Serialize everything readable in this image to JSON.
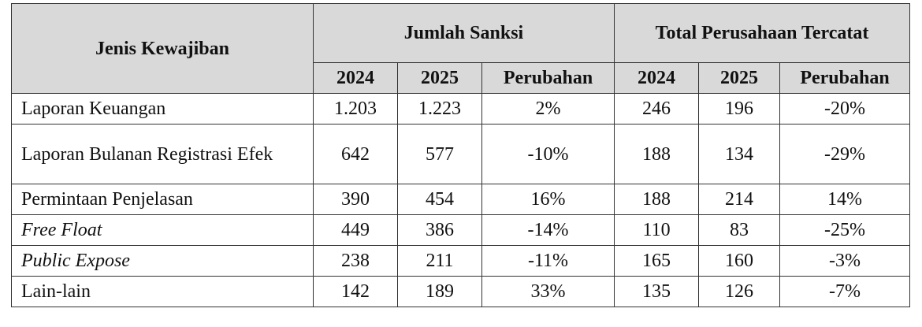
{
  "table": {
    "header": {
      "jenis": "Jenis Kewajiban",
      "group1": "Jumlah Sanksi",
      "group2": "Total Perusahaan Tercatat",
      "sub": [
        "2024",
        "2025",
        "Perubahan",
        "2024",
        "2025",
        "Perubahan"
      ]
    },
    "rows": [
      [
        "Laporan Keuangan",
        "1.203",
        "1.223",
        "2%",
        "246",
        "196",
        "-20%"
      ],
      [
        "Laporan Bulanan Registrasi Efek",
        "642",
        "577",
        "-10%",
        "188",
        "134",
        "-29%"
      ],
      [
        "Permintaan Penjelasan",
        "390",
        "454",
        "16%",
        "188",
        "214",
        "14%"
      ],
      [
        "Free Float",
        "449",
        "386",
        "-14%",
        "110",
        "83",
        "-25%"
      ],
      [
        "Public Expose",
        "238",
        "211",
        "-11%",
        "165",
        "160",
        "-3%"
      ],
      [
        "Lain-lain",
        "142",
        "189",
        "33%",
        "135",
        "126",
        "-7%"
      ]
    ]
  }
}
